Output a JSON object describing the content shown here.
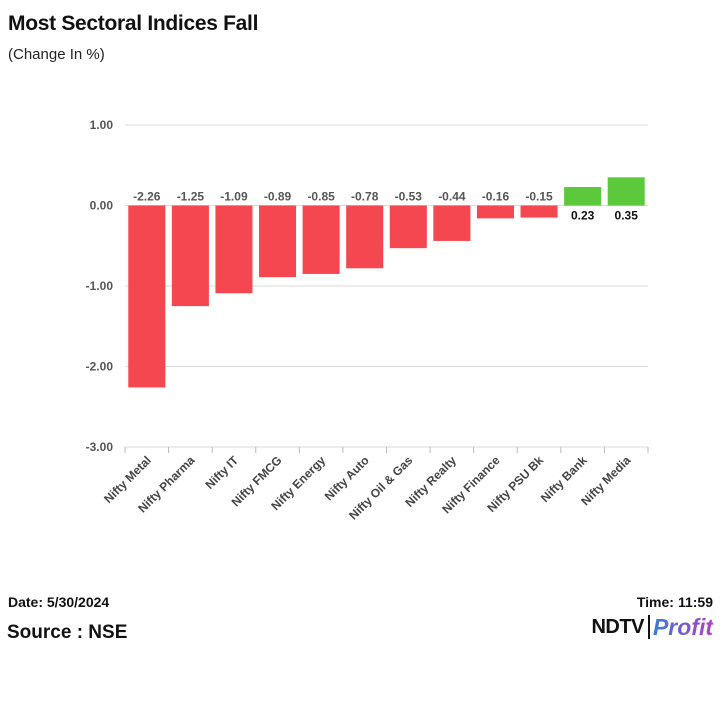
{
  "header": {
    "title": "Most Sectoral Indices Fall",
    "subtitle": "(Change In %)"
  },
  "footer": {
    "date": "Date: 5/30/2024",
    "source": "Source : NSE",
    "time_label": "Time:",
    "time_value": "11:59",
    "logo_ndtv": "NDTV",
    "logo_profit": "Profit"
  },
  "colors": {
    "negative": "#f4474f",
    "positive": "#5cc93c",
    "grid": "#d9d9d9",
    "profit_start": "#3a7bd5",
    "profit_end": "#b040c8"
  },
  "chart_data": {
    "type": "bar",
    "title": "Most Sectoral Indices Fall",
    "subtitle": "(Change In %)",
    "xlabel": "",
    "ylabel": "",
    "ylim": [
      -3,
      1
    ],
    "yticks": [
      1,
      0,
      -1,
      -2,
      -3
    ],
    "ytick_labels": [
      "1.00",
      "0.00",
      "-1.00",
      "-2.00",
      "-3.00"
    ],
    "grid": true,
    "categories": [
      "Nifty Metal",
      "Nifty Pharma",
      "Nifty IT",
      "Nifty FMCG",
      "Nifty Energy",
      "Nifty Auto",
      "Nifty Oil & Gas",
      "Nifty Realty",
      "Nifty Finance",
      "Nifty PSU Bk",
      "Nifty Bank",
      "Nifty Media"
    ],
    "values": [
      -2.26,
      -1.25,
      -1.09,
      -0.89,
      -0.85,
      -0.78,
      -0.53,
      -0.44,
      -0.16,
      -0.15,
      0.23,
      0.35
    ],
    "value_labels": [
      "-2.26",
      "-1.25",
      "-1.09",
      "-0.89",
      "-0.85",
      "-0.78",
      "-0.53",
      "-0.44",
      "-0.16",
      "-0.15",
      "0.23",
      "0.35"
    ]
  }
}
